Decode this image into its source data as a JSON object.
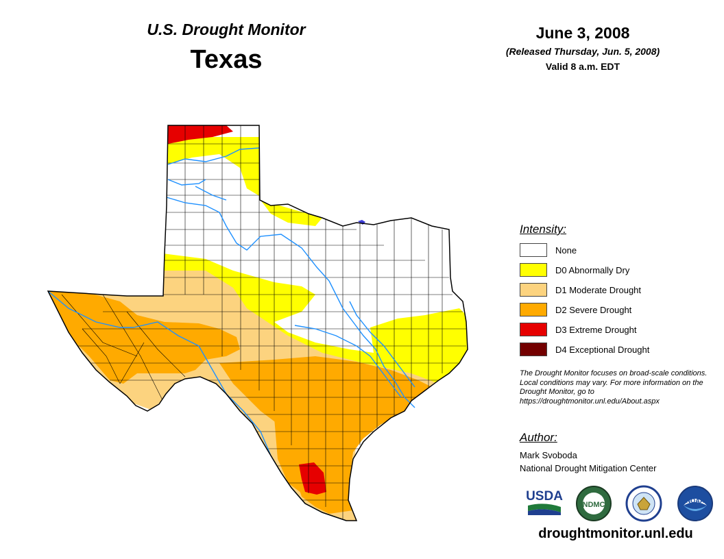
{
  "header": {
    "monitor_title": "U.S. Drought Monitor",
    "state": "Texas",
    "date": "June 3, 2008",
    "released": "(Released Thursday, Jun. 5, 2008)",
    "valid": "Valid 8 a.m. EDT"
  },
  "legend": {
    "heading": "Intensity:",
    "items": [
      {
        "label": "None",
        "color": "#ffffff"
      },
      {
        "label": "D0 Abnormally Dry",
        "color": "#ffff00"
      },
      {
        "label": "D1 Moderate Drought",
        "color": "#fcd37f"
      },
      {
        "label": "D2 Severe Drought",
        "color": "#ffaa00"
      },
      {
        "label": "D3 Extreme Drought",
        "color": "#e60000"
      },
      {
        "label": "D4 Exceptional Drought",
        "color": "#730000"
      }
    ]
  },
  "note": "The Drought Monitor focuses on broad-scale conditions. Local conditions may vary. For more information on the Drought Monitor, go to https://droughtmonitor.unl.edu/About.aspx",
  "author": {
    "heading": "Author:",
    "name": "Mark Svoboda",
    "organization": "National Drought Mitigation Center"
  },
  "logos": {
    "usda": "USDA",
    "ndmc": "NDMC",
    "noaa": "NOAA"
  },
  "website": "droughtmonitor.unl.edu",
  "colors": {
    "river": "#1e90ff",
    "county_line": "#000000",
    "lake": "#3b3bd6"
  }
}
